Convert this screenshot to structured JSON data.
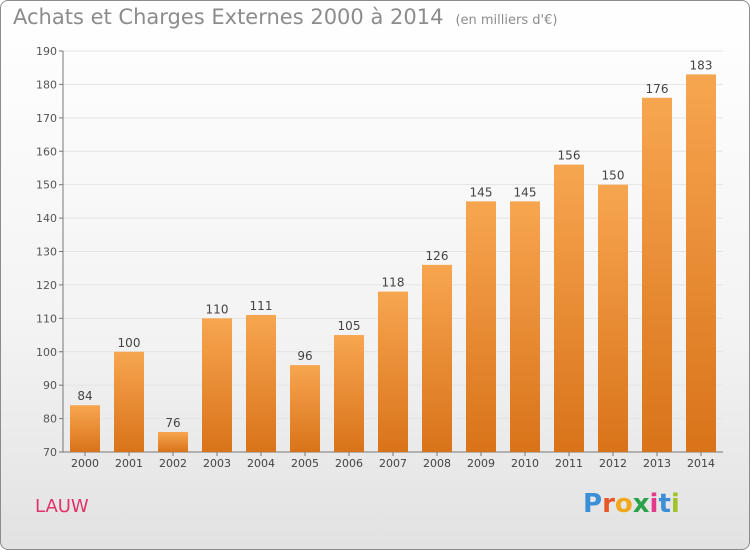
{
  "header": {
    "title": "Achats et Charges Externes 2000 à 2014",
    "subtitle": "(en milliers d'€)"
  },
  "footer": {
    "commune": "LAUW",
    "logo": {
      "letters": [
        "P",
        "r",
        "o",
        "x",
        "i",
        "t",
        "i"
      ],
      "colors": [
        "#3a8fd6",
        "#e8562a",
        "#f2a81d",
        "#2aa24a",
        "#e33b8a",
        "#3a8fd6",
        "#9ec42a"
      ]
    }
  },
  "chart_data": {
    "type": "bar",
    "categories": [
      "2000",
      "2001",
      "2002",
      "2003",
      "2004",
      "2005",
      "2006",
      "2007",
      "2008",
      "2009",
      "2010",
      "2011",
      "2012",
      "2013",
      "2014"
    ],
    "values": [
      84,
      100,
      76,
      110,
      111,
      96,
      105,
      118,
      126,
      145,
      145,
      156,
      150,
      176,
      183
    ],
    "ylim": [
      70,
      190
    ],
    "yticks": [
      70,
      80,
      90,
      100,
      110,
      120,
      130,
      140,
      150,
      160,
      170,
      180,
      190
    ],
    "grid": true,
    "bar_color_top": "#f7a650",
    "bar_color_bottom": "#d9731a"
  }
}
